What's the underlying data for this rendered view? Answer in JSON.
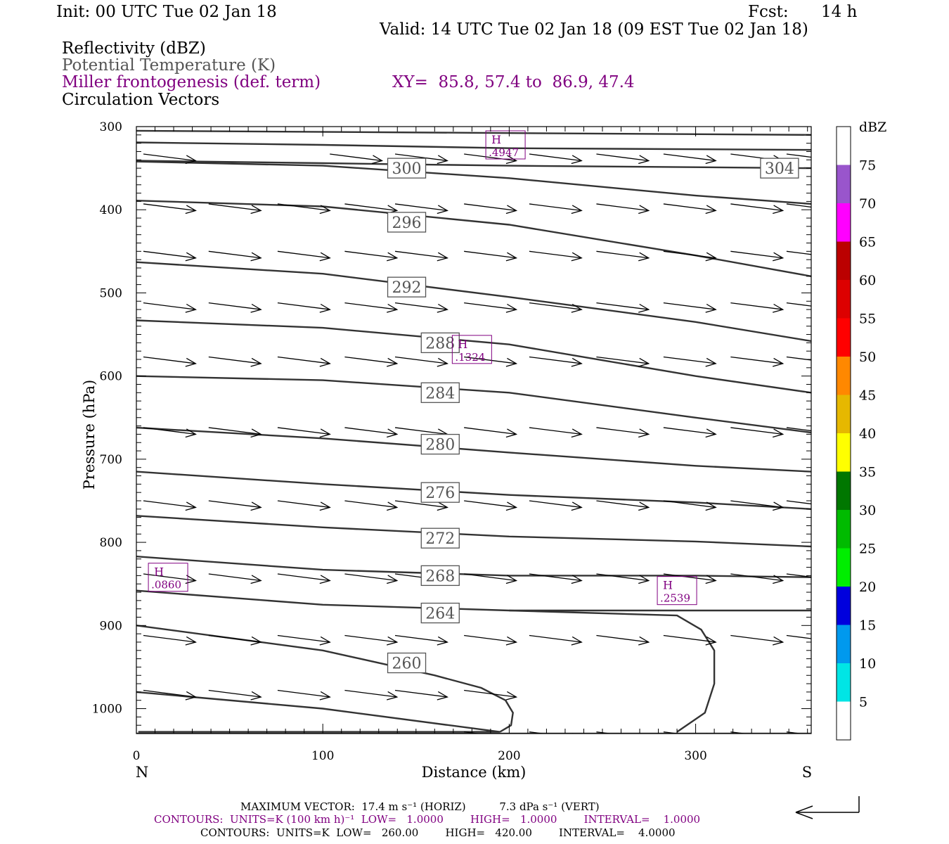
{
  "header": {
    "init": "Init: 00 UTC Tue 02 Jan 18",
    "fcst_label": "Fcst:",
    "fcst_value": "14 h",
    "valid": "Valid: 14 UTC Tue 02 Jan 18 (09 EST Tue 02 Jan 18)"
  },
  "fields": {
    "reflectivity": "Reflectivity (dBZ)",
    "potential_temperature": "Potential Temperature (K)",
    "miller": "Miller frontogenesis (def. term)",
    "xy": "XY=  85.8, 57.4 to  86.9, 47.4",
    "circulation": "Circulation Vectors"
  },
  "footer": {
    "max_vector": "MAXIMUM VECTOR:  17.4 m s⁻¹ (HORIZ)          7.3 dPa s⁻¹ (VERT)",
    "contours_purple": "CONTOURS:  UNITS=K (100 km h)⁻¹  LOW=   1.0000        HIGH=   1.0000        INTERVAL=    1.0000",
    "contours_black": "CONTOURS:  UNITS=K  LOW=   260.00        HIGH=   420.00        INTERVAL=    4.0000"
  },
  "colors": {
    "purple": "#800080",
    "theta_line": "#333333",
    "gray_text": "#555555"
  },
  "chart_data": {
    "type": "line",
    "xlabel": "Distance (km)",
    "ylabel": "Pressure (hPa)",
    "xlim": [
      0,
      362
    ],
    "ylim": [
      300,
      1030
    ],
    "y_scale": "linear (reversed)",
    "x_ticks": [
      0,
      100,
      200,
      300
    ],
    "y_ticks": [
      300,
      400,
      500,
      600,
      700,
      800,
      900,
      1000
    ],
    "left_end_label": "N",
    "right_end_label": "S",
    "isentropes": [
      {
        "value": "",
        "x": [
          0,
          362
        ],
        "y": [
          305,
          310
        ]
      },
      {
        "value": "",
        "x": [
          0,
          100,
          200,
          362
        ],
        "y": [
          319,
          322,
          326,
          328
        ]
      },
      {
        "value": "304",
        "x": [
          0,
          100,
          200,
          362
        ],
        "y": [
          341,
          344,
          347,
          350
        ]
      },
      {
        "value": "300",
        "x": [
          0,
          100,
          200,
          300,
          362
        ],
        "y": [
          342,
          347,
          362,
          383,
          393
        ]
      },
      {
        "value": "296",
        "x": [
          0,
          100,
          200,
          300,
          362
        ],
        "y": [
          389,
          396,
          418,
          455,
          480
        ]
      },
      {
        "value": "292",
        "x": [
          0,
          100,
          200,
          300,
          362
        ],
        "y": [
          463,
          477,
          505,
          535,
          558
        ]
      },
      {
        "value": "288",
        "x": [
          0,
          100,
          200,
          300,
          362
        ],
        "y": [
          533,
          542,
          562,
          600,
          620
        ]
      },
      {
        "value": "284",
        "x": [
          0,
          100,
          200,
          300,
          362
        ],
        "y": [
          600,
          605,
          620,
          650,
          668
        ]
      },
      {
        "value": "280",
        "x": [
          0,
          100,
          200,
          300,
          362
        ],
        "y": [
          662,
          675,
          692,
          708,
          715
        ]
      },
      {
        "value": "276",
        "x": [
          0,
          100,
          200,
          300,
          362
        ],
        "y": [
          715,
          730,
          743,
          752,
          760
        ]
      },
      {
        "value": "272",
        "x": [
          0,
          100,
          200,
          300,
          362
        ],
        "y": [
          768,
          782,
          793,
          799,
          805
        ]
      },
      {
        "value": "268",
        "x": [
          0,
          100,
          200,
          300,
          362
        ],
        "y": [
          817,
          833,
          840,
          840,
          842
        ]
      },
      {
        "value": "264",
        "x": [
          0,
          100,
          200,
          300,
          362
        ],
        "y": [
          858,
          875,
          882,
          882,
          882
        ]
      },
      {
        "value": "",
        "x": [
          0,
          362
        ],
        "y": [
          1030,
          1030
        ]
      }
    ],
    "isentrope_label_positions": [
      {
        "value": "304",
        "x": 345,
        "p": 350
      },
      {
        "value": "300",
        "x": 145,
        "p": 350
      },
      {
        "value": "296",
        "x": 145,
        "p": 415
      },
      {
        "value": "292",
        "x": 145,
        "p": 493
      },
      {
        "value": "288",
        "x": 163,
        "p": 560
      },
      {
        "value": "284",
        "x": 163,
        "p": 620
      },
      {
        "value": "280",
        "x": 163,
        "p": 682
      },
      {
        "value": "276",
        "x": 163,
        "p": 740
      },
      {
        "value": "272",
        "x": 163,
        "p": 795
      },
      {
        "value": "268",
        "x": 163,
        "p": 840
      },
      {
        "value": "264",
        "x": 163,
        "p": 885
      },
      {
        "value": "260",
        "x": 145,
        "p": 945
      }
    ],
    "closed_contours": [
      {
        "x": [
          0,
          100,
          160,
          185,
          198,
          202,
          201,
          195
        ],
        "y": [
          900,
          930,
          960,
          975,
          990,
          1005,
          1020,
          1028
        ]
      },
      {
        "x": [
          0,
          100,
          195,
          1
        ],
        "y": [
          980,
          1000,
          1028,
          1028
        ]
      },
      {
        "x": [
          200,
          290,
          303,
          310,
          310,
          305,
          290
        ],
        "y": [
          882,
          888,
          905,
          930,
          970,
          1005,
          1028
        ]
      }
    ],
    "maxima": [
      {
        "label": "H",
        "value": ".4947",
        "x": 198,
        "p": 322
      },
      {
        "label": "H",
        "value": ".1324",
        "x": 180,
        "p": 568
      },
      {
        "label": "H",
        "value": ".0860",
        "x": 17,
        "p": 842
      },
      {
        "label": "H",
        "value": ".2539",
        "x": 290,
        "p": 858
      }
    ],
    "vectors": {
      "rows": [
        {
          "p": 333,
          "x": [
            0,
            100,
            135,
            172,
            207,
            243,
            279,
            315,
            345
          ]
        },
        {
          "p": 393,
          "x": [
            0,
            35,
            72,
            108,
            135,
            172,
            207,
            243,
            279,
            315,
            345
          ]
        },
        {
          "p": 450,
          "x": [
            0,
            35,
            72,
            108,
            135,
            172,
            207,
            243,
            279,
            315,
            345
          ]
        },
        {
          "p": 512,
          "x": [
            0,
            35,
            72,
            108,
            135,
            172,
            207,
            243,
            279,
            315,
            345
          ]
        },
        {
          "p": 577,
          "x": [
            0,
            35,
            72,
            108,
            135,
            172,
            207,
            243,
            279,
            315,
            345
          ]
        },
        {
          "p": 662,
          "x": [
            0,
            35,
            72,
            108,
            135,
            172,
            207,
            243,
            279,
            315,
            345
          ]
        },
        {
          "p": 750,
          "x": [
            0,
            35,
            72,
            108,
            135,
            172,
            207,
            243,
            279,
            315,
            345
          ]
        },
        {
          "p": 838,
          "x": [
            0,
            35,
            72,
            108,
            135,
            172,
            207,
            243,
            279,
            315,
            345
          ]
        },
        {
          "p": 912,
          "x": [
            0,
            35,
            72,
            108,
            135,
            172,
            207,
            243,
            279,
            315,
            345
          ]
        },
        {
          "p": 978,
          "x": [
            0,
            35,
            72,
            108,
            135,
            172
          ]
        },
        {
          "p": 1028,
          "x": [
            172,
            207,
            243,
            279,
            315,
            345
          ]
        }
      ],
      "length_km": 28,
      "slope_hpa": 8,
      "reference_vector": "MAXIMUM VECTOR"
    },
    "colorbar": {
      "title": "dBZ",
      "labels": [
        "75",
        "70",
        "65",
        "60",
        "55",
        "50",
        "45",
        "40",
        "35",
        "30",
        "25",
        "20",
        "15",
        "10",
        "5"
      ],
      "colors": [
        "#ffffff",
        "#9955cc",
        "#ff00ff",
        "#bb0000",
        "#dd0000",
        "#ff0000",
        "#ff8800",
        "#e6b800",
        "#ffff00",
        "#007700",
        "#00bb00",
        "#00ee00",
        "#0000dd",
        "#0099ee",
        "#00e5e5",
        "#ffffff"
      ]
    }
  }
}
